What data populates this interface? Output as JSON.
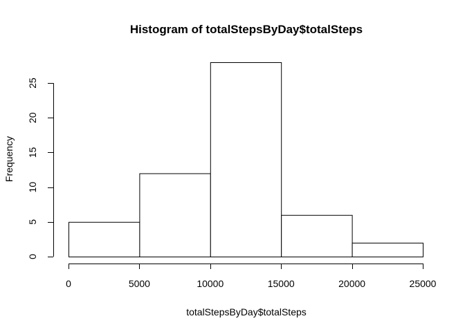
{
  "chart_data": {
    "type": "bar",
    "title": "Histogram of totalStepsByDay$totalSteps",
    "xlabel": "totalStepsByDay$totalSteps",
    "ylabel": "Frequency",
    "bins": [
      {
        "from": 0,
        "to": 5000,
        "count": 5
      },
      {
        "from": 5000,
        "to": 10000,
        "count": 12
      },
      {
        "from": 10000,
        "to": 15000,
        "count": 28
      },
      {
        "from": 15000,
        "to": 20000,
        "count": 6
      },
      {
        "from": 20000,
        "to": 25000,
        "count": 2
      }
    ],
    "x_ticks": [
      "0",
      "5000",
      "10000",
      "15000",
      "20000",
      "25000"
    ],
    "x_tick_values": [
      0,
      5000,
      10000,
      15000,
      20000,
      25000
    ],
    "y_ticks": [
      "0",
      "5",
      "10",
      "15",
      "20",
      "25"
    ],
    "y_tick_values": [
      0,
      5,
      10,
      15,
      20,
      25
    ],
    "xlim": [
      0,
      25000
    ],
    "ylim": [
      0,
      28
    ],
    "grid": false,
    "legend": "none",
    "colors": {
      "bar_fill": "#ffffff",
      "bar_stroke": "#000000",
      "background": "#ffffff"
    }
  }
}
